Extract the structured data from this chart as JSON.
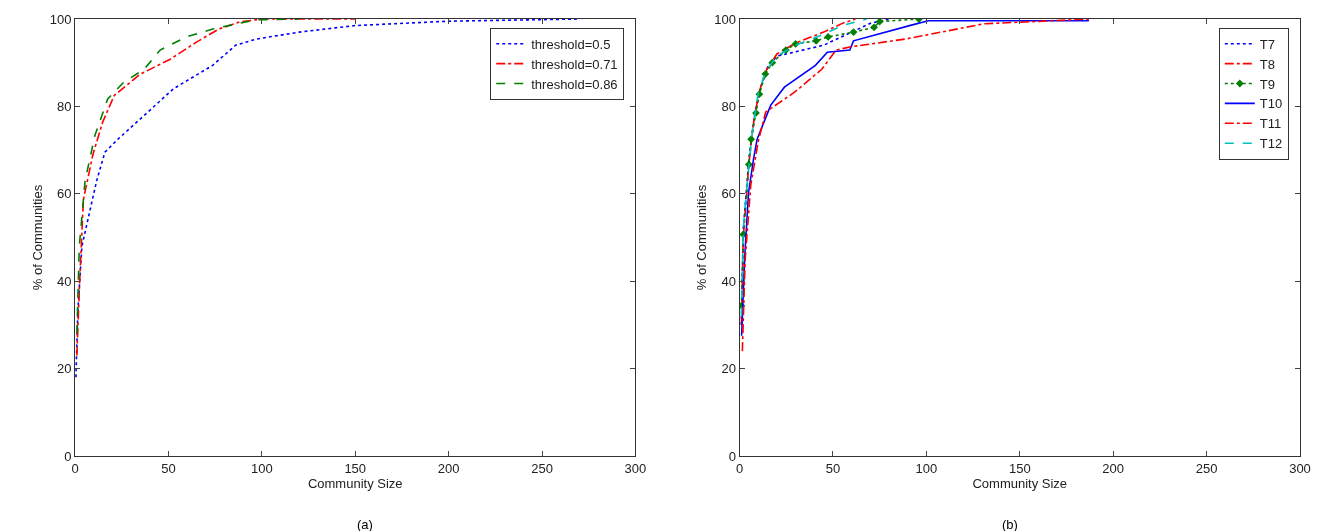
{
  "chart_data": [
    {
      "type": "line",
      "xlabel": "Community Size",
      "ylabel": "% of Communities",
      "xlim": [
        0,
        300
      ],
      "ylim": [
        0,
        100
      ],
      "xticks": [
        0,
        50,
        100,
        150,
        200,
        250,
        300
      ],
      "yticks": [
        0,
        20,
        40,
        60,
        80,
        100
      ],
      "legend": "top right",
      "annotations": [
        "(a)"
      ],
      "series": [
        {
          "name": "threshold=0.5",
          "color": "#0000ff",
          "line_style": "dotted",
          "x": [
            0.5,
            1.5,
            3.7,
            11.6,
            16,
            23,
            39,
            52.6,
            73.7,
            86,
            97,
            120,
            150,
            200,
            270
          ],
          "values": [
            18,
            33,
            48,
            63,
            69.5,
            72.5,
            78.7,
            84,
            89.4,
            94,
            95.4,
            97,
            98.5,
            99.5,
            100
          ]
        },
        {
          "name": "threshold=0.71",
          "color": "#ff0000",
          "line_style": "dashdot",
          "x": [
            1,
            2.5,
            4.5,
            9.6,
            14.8,
            21,
            35,
            51,
            65,
            77,
            88,
            100,
            150
          ],
          "values": [
            23,
            40,
            58.7,
            69,
            76.4,
            82.5,
            87.4,
            90.8,
            94.7,
            97.7,
            99.3,
            100,
            100
          ]
        },
        {
          "name": "threshold=0.86",
          "color": "#007f00",
          "line_style": "dashed",
          "x": [
            1,
            2.3,
            5.4,
            10.7,
            17.5,
            26,
            37,
            45.6,
            59.6,
            73.7,
            96.5,
            120
          ],
          "values": [
            28,
            48,
            63,
            73.4,
            81.7,
            85.5,
            88.5,
            92.9,
            95.9,
            97.7,
            99.8,
            100
          ]
        }
      ]
    },
    {
      "type": "line",
      "xlabel": "Community Size",
      "ylabel": "% of Communities",
      "xlim": [
        0,
        300
      ],
      "ylim": [
        0,
        100
      ],
      "xticks": [
        0,
        50,
        100,
        150,
        200,
        250,
        300
      ],
      "yticks": [
        0,
        20,
        40,
        60,
        80,
        100
      ],
      "legend": "top right",
      "annotations": [
        "(b)"
      ],
      "series": [
        {
          "name": "T7",
          "color": "#0000ff",
          "line_style": "dotted",
          "x": [
            1,
            2,
            5,
            8,
            11,
            15,
            20,
            30,
            45,
            60,
            70,
            80
          ],
          "values": [
            30,
            52,
            68,
            78,
            84,
            89,
            91.5,
            92.5,
            94,
            97,
            99,
            100
          ]
        },
        {
          "name": "T8",
          "color": "#ff0000",
          "line_style": "dashdot",
          "x": [
            1,
            2,
            5,
            8,
            11,
            14,
            20,
            30,
            45,
            55,
            62
          ],
          "values": [
            30,
            50,
            67,
            78,
            84,
            88,
            92,
            94.5,
            97,
            99,
            100
          ]
        },
        {
          "name": "T9",
          "color": "#007f00",
          "line_style": "dotted",
          "marker": "diamond",
          "x": [
            1,
            2,
            5,
            6.2,
            8.8,
            10.6,
            13.8,
            17.5,
            24.8,
            30,
            41,
            47.4,
            61,
            72,
            75,
            96
          ],
          "values": [
            34.4,
            50.7,
            66.7,
            72.5,
            78.5,
            82.8,
            87.4,
            90,
            92.9,
            94.3,
            95,
            95.9,
            97,
            98.1,
            99.4,
            100
          ]
        },
        {
          "name": "T10",
          "color": "#0000ff",
          "line_style": "solid",
          "x": [
            1.1,
            2.8,
            4.8,
            7.5,
            9.4,
            16.7,
            24,
            40.6,
            47,
            59,
            61,
            92,
            101,
            187
          ],
          "values": [
            27.5,
            45.9,
            60.3,
            68,
            72.5,
            80.3,
            84.4,
            89.4,
            92.4,
            92.9,
            95,
            98.6,
            99.6,
            99.6
          ]
        },
        {
          "name": "T11",
          "color": "#ff0000",
          "line_style": "dashdot",
          "x": [
            1.5,
            3,
            6,
            10,
            14,
            29.6,
            44,
            51.7,
            59,
            90,
            130.7,
            187.6
          ],
          "values": [
            24,
            45,
            62,
            72,
            78.7,
            83.3,
            88.5,
            92.9,
            93.6,
            95.5,
            98.9,
            100
          ]
        },
        {
          "name": "T12",
          "color": "#00bfbf",
          "line_style": "dashed",
          "x": [
            1,
            2,
            4,
            7,
            10,
            14,
            20,
            30,
            45,
            55,
            68
          ],
          "values": [
            32,
            52,
            62,
            75,
            83,
            88,
            91.5,
            94,
            96.5,
            98.5,
            100
          ]
        }
      ]
    }
  ]
}
